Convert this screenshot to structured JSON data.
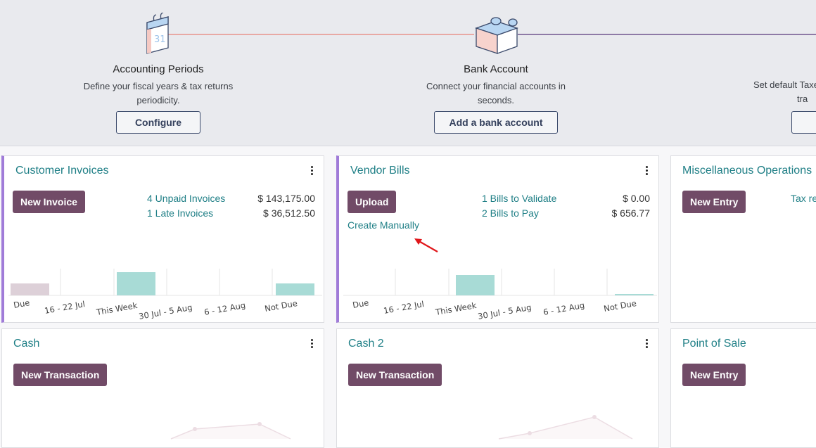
{
  "banner": {
    "steps": [
      {
        "title": "Accounting Periods",
        "desc_line1": "Define your fiscal years & tax returns",
        "desc_line2": "periodicity.",
        "button": "Configure",
        "icon": "calendar-icon"
      },
      {
        "title": "Bank Account",
        "desc_line1": "Connect your financial accounts in",
        "desc_line2": "seconds.",
        "button": "Add a bank account",
        "icon": "puzzle-piece-icon"
      },
      {
        "title": "",
        "desc_line1": "Set default Taxes",
        "desc_line2": "tra",
        "button": ""
      }
    ],
    "colors": {
      "line_left": "#e8a9a4",
      "line_right": "#8e7aa6"
    }
  },
  "cards": {
    "customer_invoices": {
      "title": "Customer Invoices",
      "button": "New Invoice",
      "stats": [
        {
          "label": "4 Unpaid Invoices",
          "amount": "$ 143,175.00"
        },
        {
          "label": "1 Late Invoices",
          "amount": "$ 36,512.50"
        }
      ],
      "chart_labels": [
        "Due",
        "16 - 22 Jul",
        "This Week",
        "30 Jul - 5 Aug",
        "6 - 12 Aug",
        "Not Due"
      ]
    },
    "vendor_bills": {
      "title": "Vendor Bills",
      "button": "Upload",
      "create_link": "Create Manually",
      "stats": [
        {
          "label": "1 Bills to Validate",
          "amount": "$ 0.00"
        },
        {
          "label": "2 Bills to Pay",
          "amount": "$ 656.77"
        }
      ],
      "chart_labels": [
        "Due",
        "16 - 22 Jul",
        "This Week",
        "30 Jul - 5 Aug",
        "6 - 12 Aug",
        "Not Due"
      ]
    },
    "misc_operations": {
      "title": "Miscellaneous Operations",
      "button": "New Entry",
      "stat_label": "Tax ret"
    },
    "cash": {
      "title": "Cash",
      "button": "New Transaction"
    },
    "cash2": {
      "title": "Cash 2",
      "button": "New Transaction"
    },
    "pos": {
      "title": "Point of Sale",
      "button": "New Entry"
    }
  },
  "chart_colors": {
    "due": "#ddd0d8",
    "week": "#a8dbd6",
    "grid": "#e6e6e6"
  }
}
